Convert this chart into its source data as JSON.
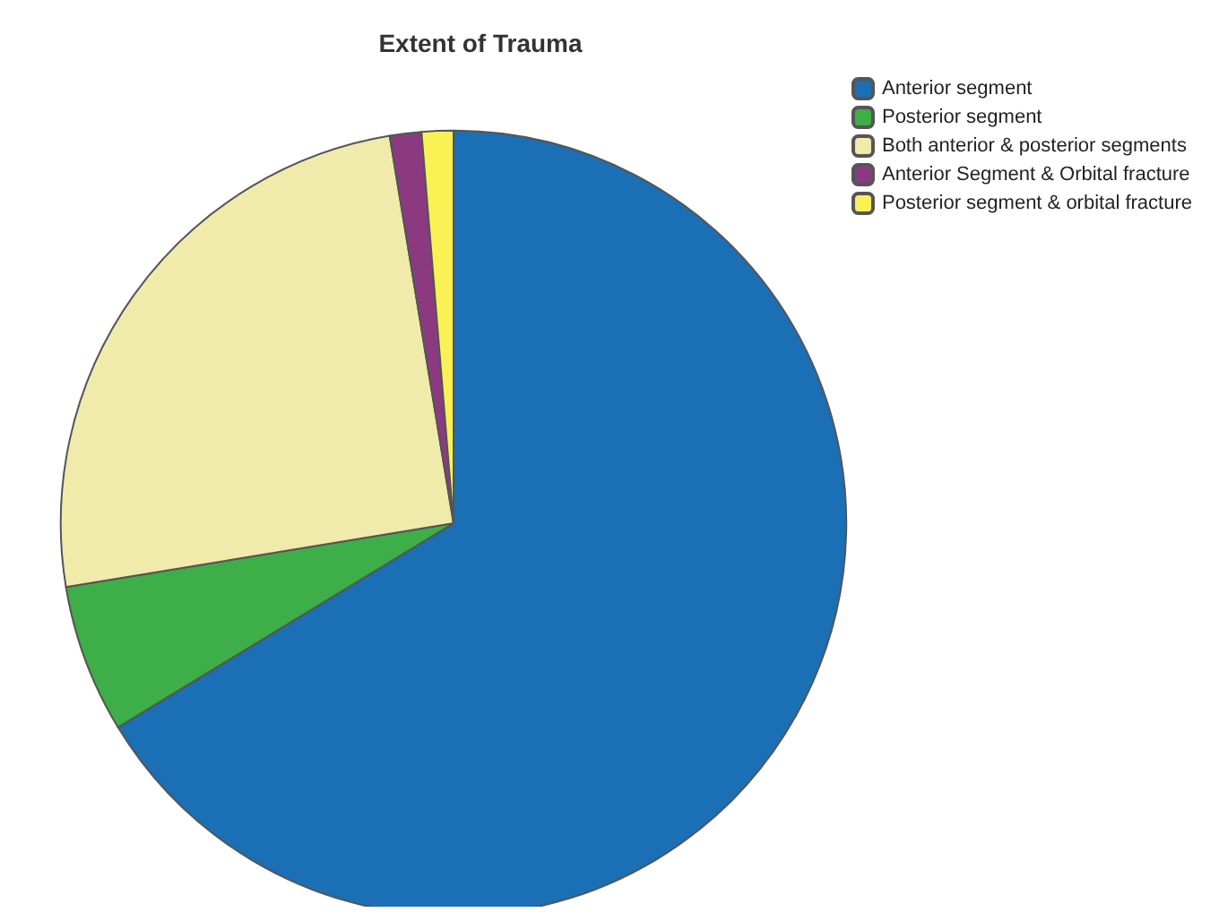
{
  "chart_data": {
    "type": "pie",
    "title": "Extent of Trauma",
    "categories": [
      "Anterior segment",
      "Posterior segment",
      "Both anterior & posterior segments",
      "Anterior Segment & Orbital fracture",
      "Posterior segment & orbital fracture"
    ],
    "values": [
      66.3,
      6.1,
      25,
      1.3,
      1.3
    ],
    "colors": [
      "#1b6fb5",
      "#3dae48",
      "#f0ebaa",
      "#8c3a80",
      "#faf255"
    ],
    "legend": "top right"
  }
}
